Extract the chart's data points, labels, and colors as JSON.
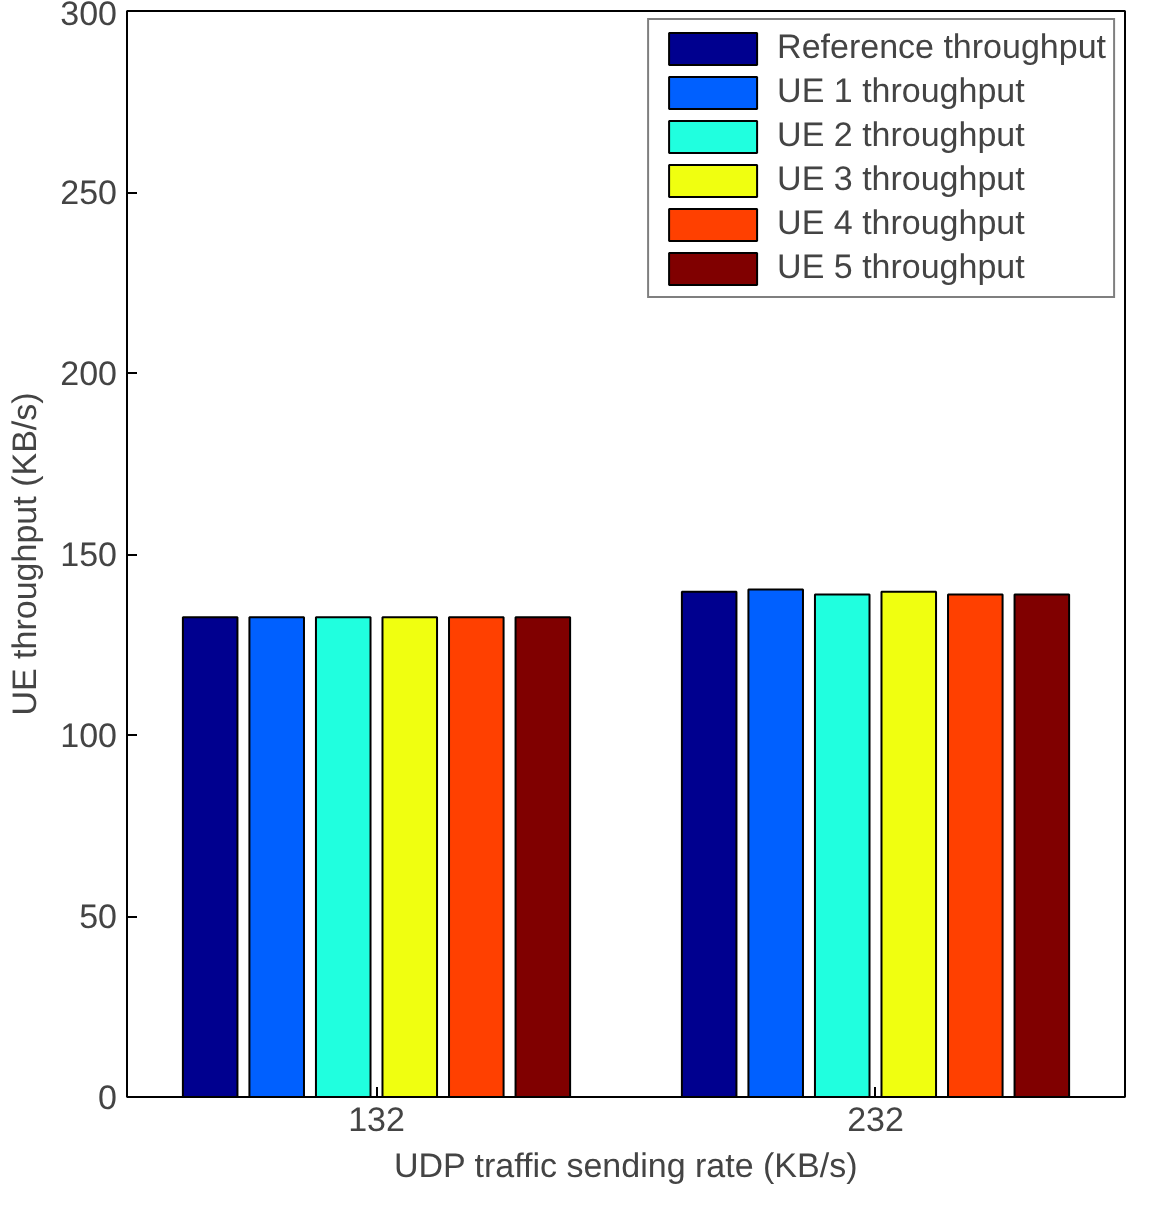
{
  "chart_data": {
    "type": "bar",
    "xlabel": "UDP traffic sending rate (KB/s)",
    "ylabel": "UE throughput (KB/s)",
    "categories": [
      "132",
      "232"
    ],
    "series": [
      {
        "name": "Reference throughput",
        "color": "#00008f",
        "values": [
          132.5,
          139.6
        ]
      },
      {
        "name": "UE 1 throughput",
        "color": "#0060ff",
        "values": [
          132.5,
          140.2
        ]
      },
      {
        "name": "UE 2 throughput",
        "color": "#20ffdf",
        "values": [
          132.5,
          138.8
        ]
      },
      {
        "name": "UE 3 throughput",
        "color": "#f0ff10",
        "values": [
          132.5,
          139.6
        ]
      },
      {
        "name": "UE 4 throughput",
        "color": "#ff4000",
        "values": [
          132.5,
          138.8
        ]
      },
      {
        "name": "UE 5 throughput",
        "color": "#800000",
        "values": [
          132.5,
          138.8
        ]
      }
    ],
    "ylim": [
      0,
      300
    ],
    "yticks": [
      0,
      50,
      100,
      150,
      200,
      250,
      300
    ],
    "grid": false,
    "legend": "top right"
  }
}
